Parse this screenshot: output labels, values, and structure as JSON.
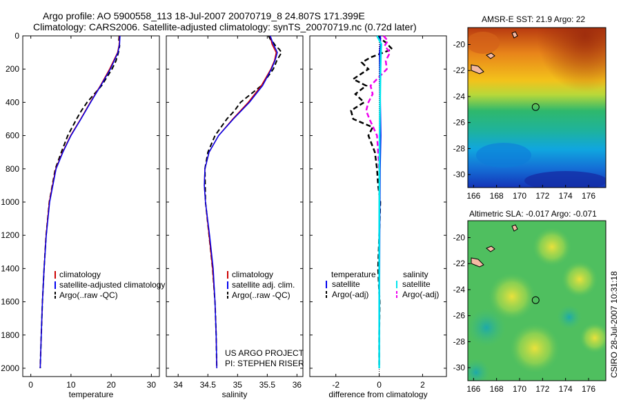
{
  "title": {
    "line1": "Argo profile: AO 5900558_113 18-Jul-2007 20070719_8 24.807S 171.399E",
    "line2": "Climatology: CARS2006. Satellite-adjusted climatology: synTS_20070719.nc (0.72d later)"
  },
  "credits": {
    "project": "US ARGO PROJECT",
    "pi": "PI: STEPHEN RISER",
    "stamp": "CSIRO 28-Jul-2007 10:31:18"
  },
  "colors": {
    "climatology": "#cc0000",
    "satellite": "#0000ee",
    "argo": "#000000",
    "sal_satellite": "#00e5ee",
    "sal_argo": "#ee00ee"
  },
  "chart_data": [
    {
      "id": "temperature",
      "type": "line",
      "xlabel": "temperature",
      "ylabel": "",
      "xlim": [
        -2,
        32
      ],
      "ylim": [
        2050,
        0
      ],
      "xticks": [
        0,
        10,
        20,
        30
      ],
      "yticks": [
        0,
        200,
        400,
        600,
        800,
        1000,
        1200,
        1400,
        1600,
        1800,
        2000
      ],
      "legend": [
        "climatology",
        "satellite-adjusted climatology",
        "Argo(..raw -QC)"
      ],
      "series": [
        {
          "name": "climatology",
          "depth": [
            0,
            50,
            100,
            200,
            300,
            400,
            500,
            600,
            700,
            800,
            1000,
            1200,
            1400,
            1600,
            1800,
            2000
          ],
          "values": [
            22.1,
            22.0,
            21.6,
            19.6,
            17.3,
            14.8,
            12.4,
            9.9,
            7.9,
            6.2,
            4.6,
            3.8,
            3.3,
            2.9,
            2.6,
            2.35
          ]
        },
        {
          "name": "satellite",
          "depth": [
            0,
            50,
            100,
            200,
            300,
            400,
            500,
            600,
            700,
            800,
            1000,
            1200,
            1400,
            1600,
            1800,
            2000
          ],
          "values": [
            22.2,
            22.1,
            21.7,
            19.8,
            17.4,
            14.9,
            12.5,
            10.0,
            8.0,
            6.3,
            4.7,
            3.85,
            3.3,
            2.9,
            2.6,
            2.35
          ]
        },
        {
          "name": "argo",
          "depth": [
            0,
            30,
            60,
            100,
            150,
            200,
            300,
            400,
            450,
            500,
            600,
            700,
            800,
            1000,
            1200,
            1400,
            1600,
            1800,
            2000
          ],
          "values": [
            22.0,
            21.9,
            22.1,
            21.8,
            21.2,
            20.2,
            17.6,
            14.0,
            12.6,
            11.4,
            9.2,
            7.6,
            6.1,
            4.6,
            3.8,
            3.3,
            2.9,
            2.6,
            2.35
          ]
        }
      ]
    },
    {
      "id": "salinity",
      "type": "line",
      "xlabel": "salinity",
      "ylabel": "",
      "xlim": [
        33.8,
        36.1
      ],
      "ylim": [
        2050,
        0
      ],
      "xticks": [
        34,
        34.5,
        35,
        35.5,
        36
      ],
      "yticks": [
        0,
        200,
        400,
        600,
        800,
        1000,
        1200,
        1400,
        1600,
        1800,
        2000
      ],
      "legend": [
        "climatology",
        "satellite adj. clim.",
        "Argo(..raw -QC)"
      ],
      "series": [
        {
          "name": "climatology",
          "depth": [
            0,
            50,
            100,
            150,
            200,
            300,
            400,
            500,
            600,
            700,
            800,
            900,
            1000,
            1200,
            1400,
            1600,
            1800,
            2000
          ],
          "values": [
            35.55,
            35.58,
            35.65,
            35.62,
            35.56,
            35.4,
            35.18,
            34.92,
            34.68,
            34.52,
            34.45,
            34.44,
            34.46,
            34.52,
            34.58,
            34.62,
            34.64,
            34.65
          ]
        },
        {
          "name": "satellite",
          "depth": [
            0,
            50,
            100,
            150,
            200,
            300,
            400,
            500,
            600,
            700,
            800,
            900,
            1000,
            1200,
            1400,
            1600,
            1800,
            2000
          ],
          "values": [
            35.55,
            35.6,
            35.67,
            35.63,
            35.57,
            35.42,
            35.2,
            34.93,
            34.68,
            34.52,
            34.45,
            34.44,
            34.46,
            34.53,
            34.59,
            34.62,
            34.64,
            34.65
          ]
        },
        {
          "name": "argo",
          "depth": [
            0,
            20,
            40,
            60,
            80,
            100,
            150,
            200,
            300,
            400,
            450,
            500,
            600,
            700,
            800,
            1000,
            1200,
            1400,
            1600,
            1800,
            2000
          ],
          "values": [
            35.52,
            35.55,
            35.6,
            35.64,
            35.7,
            35.74,
            35.66,
            35.6,
            35.4,
            35.05,
            34.95,
            34.82,
            34.62,
            34.5,
            34.45,
            34.46,
            34.52,
            34.58,
            34.62,
            34.64,
            34.65
          ]
        }
      ]
    },
    {
      "id": "difference",
      "type": "line",
      "xlabel": "difference from climatology",
      "ylabel": "",
      "xlim": [
        -3.2,
        3.1
      ],
      "ylim": [
        2050,
        0
      ],
      "xticks": [
        -2,
        0,
        2
      ],
      "yticks": [
        0,
        200,
        400,
        600,
        800,
        1000,
        1200,
        1400,
        1600,
        1800,
        2000
      ],
      "legend_headers": [
        "temperature",
        "salinity"
      ],
      "legend": [
        "satellite",
        "Argo(-adj)",
        "satellite",
        "Argo(-adj)"
      ],
      "series": [
        {
          "name": "temperature satellite",
          "depth": [
            0,
            50,
            100,
            200,
            400,
            600,
            800,
            1200,
            1600,
            2000
          ],
          "values": [
            0.05,
            0.06,
            0.02,
            0.03,
            0.05,
            0.07,
            0.04,
            0.02,
            0.01,
            0.0
          ]
        },
        {
          "name": "temperature Argo(-adj)",
          "depth": [
            0,
            40,
            80,
            100,
            130,
            160,
            200,
            260,
            300,
            350,
            400,
            450,
            500,
            550,
            600,
            700,
            800,
            900,
            1000,
            1200,
            1400,
            1600,
            1800,
            2000
          ],
          "values": [
            -0.1,
            0.3,
            0.6,
            0.2,
            -0.4,
            -0.8,
            -0.5,
            -1.2,
            -0.6,
            -1.1,
            -0.7,
            -1.3,
            -1.2,
            -0.3,
            -0.5,
            -0.2,
            -0.1,
            -0.05,
            0.05,
            0.0,
            -0.05,
            0.02,
            0.0,
            0.0
          ]
        },
        {
          "name": "salinity satellite",
          "depth": [
            0,
            50,
            100,
            200,
            400,
            600,
            800,
            1200,
            1600,
            2000
          ],
          "values": [
            -0.1,
            0.1,
            0.08,
            0.06,
            0.04,
            0.02,
            0.01,
            0.0,
            0.0,
            0.0
          ]
        },
        {
          "name": "salinity Argo(-adj)",
          "depth": [
            0,
            30,
            60,
            100,
            150,
            200,
            260,
            300,
            350,
            400,
            450,
            500,
            600,
            700,
            800
          ],
          "values": [
            0.2,
            0.4,
            0.25,
            0.5,
            0.3,
            0.35,
            -0.1,
            -0.4,
            -0.3,
            -0.5,
            -0.6,
            -0.45,
            -0.1,
            -0.05,
            0.0
          ]
        }
      ]
    },
    {
      "id": "sst_map",
      "type": "heatmap",
      "title": "AMSR-E SST: 21.9 Argo: 22",
      "xlim": [
        165.5,
        177.5
      ],
      "ylim": [
        -31,
        -18.7
      ],
      "xticks": [
        166,
        168,
        170,
        172,
        174,
        176
      ],
      "yticks": [
        -20,
        -22,
        -24,
        -26,
        -28,
        -30
      ],
      "marker": {
        "lon": 171.399,
        "lat": -24.807
      }
    },
    {
      "id": "sla_map",
      "type": "heatmap",
      "title": "Altimetric SLA: -0.017 Argo: -0.071",
      "xlim": [
        165.5,
        177.5
      ],
      "ylim": [
        -31,
        -18.7
      ],
      "xticks": [
        166,
        168,
        170,
        172,
        174,
        176
      ],
      "yticks": [
        -20,
        -22,
        -24,
        -26,
        -28,
        -30
      ],
      "marker": {
        "lon": 171.399,
        "lat": -24.807
      }
    }
  ]
}
